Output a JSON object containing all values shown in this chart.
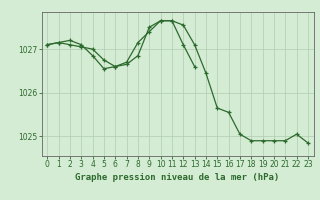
{
  "title": "Graphe pression niveau de la mer (hPa)",
  "background_color": "#d4ecd4",
  "plot_bg_color": "#d4ecd4",
  "grid_color": "#b0ccb0",
  "line_color": "#2d6a2d",
  "xlim": [
    -0.5,
    23.5
  ],
  "ylim": [
    1024.55,
    1027.85
  ],
  "yticks": [
    1025,
    1026,
    1027
  ],
  "xticks": [
    0,
    1,
    2,
    3,
    4,
    5,
    6,
    7,
    8,
    9,
    10,
    11,
    12,
    13,
    14,
    15,
    16,
    17,
    18,
    19,
    20,
    21,
    22,
    23
  ],
  "series1_x": [
    0,
    1,
    2,
    3,
    4,
    5,
    6,
    7,
    8,
    9,
    10,
    11,
    12,
    13,
    14,
    15,
    16,
    17,
    18,
    19,
    20,
    21,
    22,
    23
  ],
  "series1_y": [
    1027.1,
    1027.15,
    1027.2,
    1027.1,
    1026.85,
    1026.55,
    1026.6,
    1026.65,
    1026.85,
    1027.5,
    1027.65,
    1027.65,
    1027.55,
    1027.1,
    1026.45,
    1025.65,
    1025.55,
    1025.05,
    1024.9,
    1024.9,
    1024.9,
    1024.9,
    1025.05,
    1024.85
  ],
  "series2_x": [
    0,
    1,
    2,
    3,
    4,
    5,
    6,
    7,
    8,
    9,
    10,
    11,
    12,
    13
  ],
  "series2_y": [
    1027.1,
    1027.15,
    1027.1,
    1027.05,
    1027.0,
    1026.75,
    1026.6,
    1026.7,
    1027.15,
    1027.4,
    1027.65,
    1027.65,
    1027.1,
    1026.6
  ],
  "tick_fontsize": 5.5,
  "title_fontsize": 6.5
}
